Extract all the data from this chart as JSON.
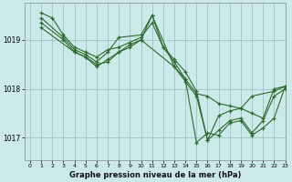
{
  "title": "Graphe pression niveau de la mer (hPa)",
  "bg_color": "#cce9e9",
  "line_color": "#2d6a2d",
  "grid_color": "#99bbbb",
  "ylim": [
    1016.55,
    1019.75
  ],
  "xlim": [
    -0.5,
    23
  ],
  "yticks": [
    1017,
    1018,
    1019
  ],
  "xticks": [
    0,
    1,
    2,
    3,
    4,
    5,
    6,
    7,
    8,
    9,
    10,
    11,
    12,
    13,
    14,
    15,
    16,
    17,
    18,
    19,
    20,
    21,
    22,
    23
  ],
  "series": [
    {
      "x": [
        1,
        2,
        3,
        4,
        5,
        6,
        7,
        8,
        9,
        10,
        11,
        12,
        13,
        14,
        15,
        16,
        17,
        18,
        19,
        20,
        21,
        22,
        23
      ],
      "y": [
        1019.55,
        1019.45,
        1019.1,
        1018.85,
        1018.75,
        1018.65,
        1018.8,
        1018.85,
        1018.95,
        1019.05,
        1019.35,
        1018.85,
        1018.55,
        1018.2,
        1017.9,
        1017.85,
        1017.7,
        1017.65,
        1017.6,
        1017.5,
        1017.4,
        1018.0,
        1018.05
      ]
    },
    {
      "x": [
        1,
        3,
        4,
        5,
        6,
        7,
        8,
        10,
        11,
        12,
        13,
        14,
        15,
        16,
        17,
        18,
        19,
        20,
        22,
        23
      ],
      "y": [
        1019.45,
        1019.05,
        1018.8,
        1018.7,
        1018.55,
        1018.75,
        1019.05,
        1019.1,
        1019.5,
        1018.85,
        1018.6,
        1018.35,
        1017.95,
        1016.95,
        1017.45,
        1017.55,
        1017.6,
        1017.85,
        1017.95,
        1018.05
      ]
    },
    {
      "x": [
        1,
        3,
        4,
        5,
        6,
        7,
        8,
        9,
        10,
        11,
        13,
        14,
        15,
        16,
        17,
        18,
        19,
        20,
        21,
        22,
        23
      ],
      "y": [
        1019.35,
        1019.0,
        1018.75,
        1018.65,
        1018.45,
        1018.6,
        1018.75,
        1018.9,
        1019.0,
        1019.5,
        1018.45,
        1018.15,
        1017.85,
        1016.95,
        1017.15,
        1017.35,
        1017.4,
        1017.1,
        1017.35,
        1017.85,
        1018.0
      ]
    },
    {
      "x": [
        1,
        4,
        5,
        6,
        7,
        8,
        9,
        10,
        13,
        14,
        15,
        16,
        17,
        18,
        19,
        20,
        21,
        22,
        23
      ],
      "y": [
        1019.25,
        1018.75,
        1018.65,
        1018.5,
        1018.55,
        1018.75,
        1018.85,
        1019.0,
        1018.45,
        1018.2,
        1016.9,
        1017.1,
        1017.05,
        1017.3,
        1017.35,
        1017.05,
        1017.2,
        1017.4,
        1018.05
      ]
    }
  ]
}
